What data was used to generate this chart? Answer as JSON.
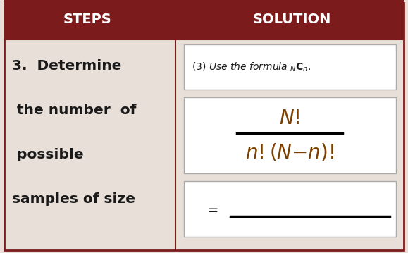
{
  "header_bg_color": "#7B1B1B",
  "header_text_color": "#FFFFFF",
  "body_bg_color": "#E8E0D8",
  "white_box_color": "#FFFFFF",
  "divider_color": "#7B1B1B",
  "steps_header": "STEPS",
  "solution_header": "SOLUTION",
  "steps_text_line1": "3.  Determine",
  "steps_text_line2": " the number  of",
  "steps_text_line3": " possible",
  "steps_text_line4": "samples of size",
  "steps_text_color": "#1A1A1A",
  "formula_color": "#7B3F00",
  "label_text_color": "#1A1A1A",
  "col_split": 0.43
}
